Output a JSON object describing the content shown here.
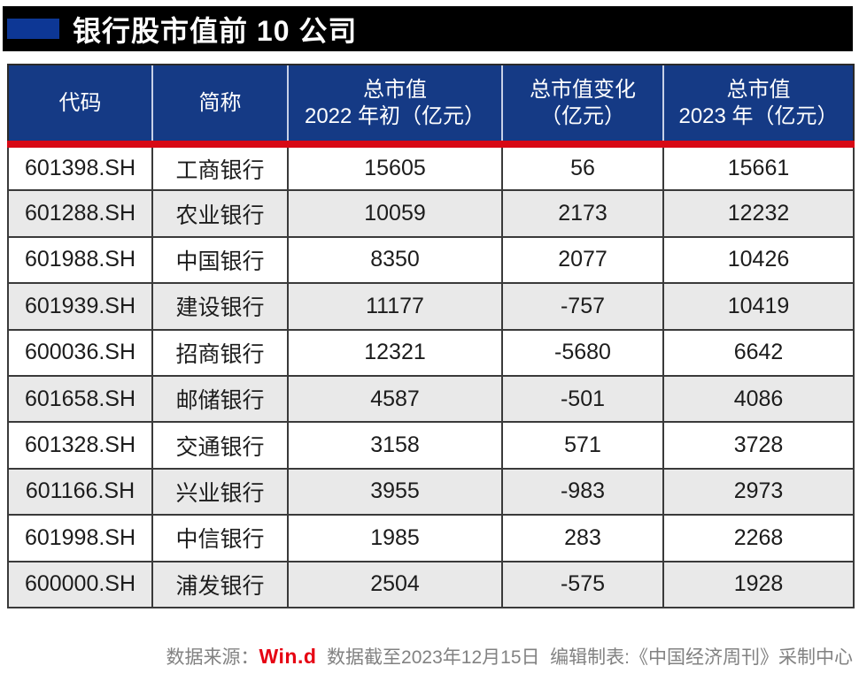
{
  "title": {
    "bar_label": "银行股市值前 10 公司"
  },
  "table": {
    "columns": [
      {
        "label": "代码"
      },
      {
        "label": "简称"
      },
      {
        "label": "总市值\n2022 年初（亿元）"
      },
      {
        "label": "总市值变化\n（亿元）"
      },
      {
        "label": "总市值\n2023 年（亿元）"
      }
    ]
  },
  "chart_data": {
    "type": "table",
    "title": "银行股市值前 10 公司",
    "columns": [
      "代码",
      "简称",
      "总市值 2022 年初（亿元）",
      "总市值变化（亿元）",
      "总市值 2023 年（亿元）"
    ],
    "rows": [
      [
        "601398.SH",
        "工商银行",
        "15605",
        "56",
        "15661"
      ],
      [
        "601288.SH",
        "农业银行",
        "10059",
        "2173",
        "12232"
      ],
      [
        "601988.SH",
        "中国银行",
        "8350",
        "2077",
        "10426"
      ],
      [
        "601939.SH",
        "建设银行",
        "11177",
        "-757",
        "10419"
      ],
      [
        "600036.SH",
        "招商银行",
        "12321",
        "-5680",
        "6642"
      ],
      [
        "601658.SH",
        "邮储银行",
        "4587",
        "-501",
        "4086"
      ],
      [
        "601328.SH",
        "交通银行",
        "3158",
        "571",
        "3728"
      ],
      [
        "601166.SH",
        "兴业银行",
        "3955",
        "-983",
        "2973"
      ],
      [
        "601998.SH",
        "中信银行",
        "1985",
        "283",
        "2268"
      ],
      [
        "600000.SH",
        "浦发银行",
        "2504",
        "-575",
        "1928"
      ]
    ]
  },
  "footer": {
    "source_label": "数据来源：",
    "source_logo": "Win.d",
    "note": "  数据截至2023年12月15日  编辑制表:《中国经济周刊》采制中心"
  },
  "colors": {
    "header_bg": "#153a85",
    "accent_rect": "#0d3795",
    "red_line": "#d70915",
    "stripe_row": "#e9e9e9",
    "logo_red": "#e60012",
    "title_bar_bg": "#000000"
  }
}
